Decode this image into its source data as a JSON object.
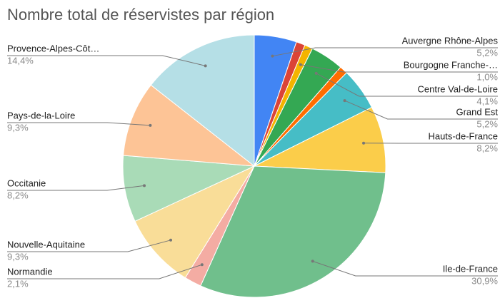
{
  "chart_data": {
    "type": "pie",
    "title": "Nombre total de réservistes par région",
    "categories": [
      "Auvergne Rhône-Alpes",
      null,
      "Bourgogne Franche-…",
      "Centre Val-de-Loire",
      null,
      "Grand Est",
      "Hauts-de-France",
      "Ile-de-France",
      "Normandie",
      "Nouvelle-Aquitaine",
      "Occitanie",
      "Pays-de-la-Loire",
      "Provence-Alpes-Côt…"
    ],
    "values": [
      5.2,
      1.1,
      1.0,
      4.1,
      1.0,
      5.2,
      8.2,
      30.9,
      2.1,
      9.3,
      8.2,
      9.3,
      14.4
    ],
    "value_labels": [
      "5,2%",
      null,
      "1,0%",
      "4,1%",
      null,
      "5,2%",
      "8,2%",
      "30,9%",
      "2,1%",
      "9,3%",
      "8,2%",
      "9,3%",
      "14,4%"
    ],
    "colors": [
      "#4285f4",
      "#db4437",
      "#f4b400",
      "#34a853",
      "#ff6d01",
      "#46bdc6",
      "#fbcd4a",
      "#70bf8c",
      "#f4aca3",
      "#f9dd98",
      "#a9dbb7",
      "#fdc496",
      "#b5dfe6"
    ]
  }
}
